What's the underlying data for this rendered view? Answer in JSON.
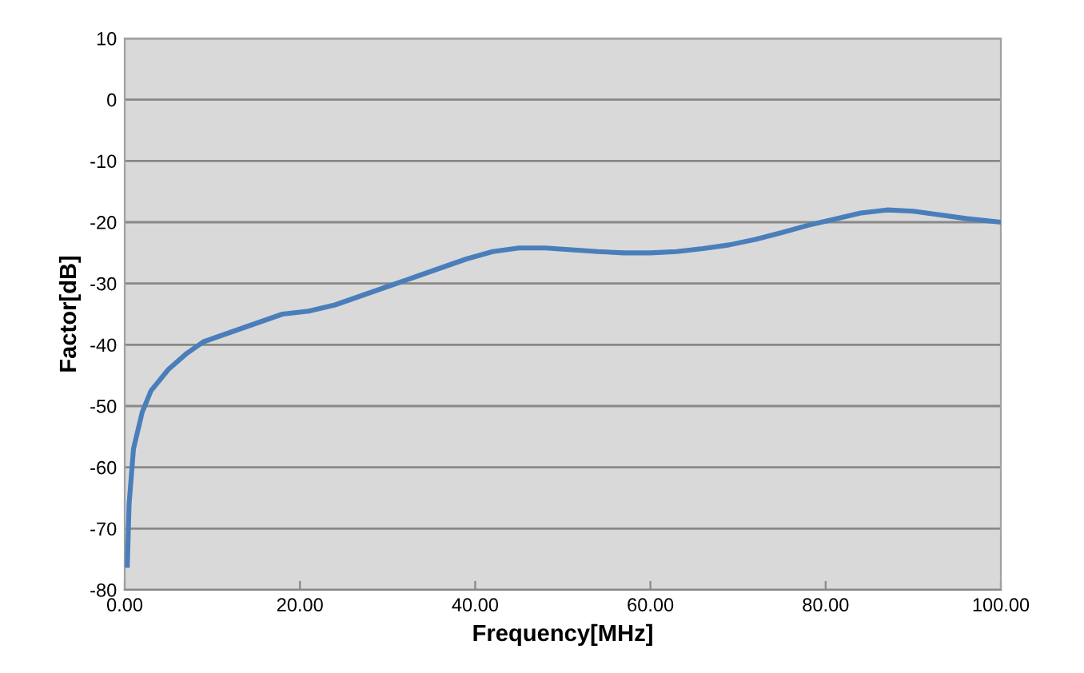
{
  "chart_data": {
    "type": "line",
    "xlabel": "Frequency[MHz]",
    "ylabel": "Factor[dB]",
    "xlim": [
      0,
      100
    ],
    "ylim": [
      -80,
      10
    ],
    "xticks": [
      {
        "value": 0,
        "label": "0.00"
      },
      {
        "value": 20,
        "label": "20.00"
      },
      {
        "value": 40,
        "label": "40.00"
      },
      {
        "value": 60,
        "label": "60.00"
      },
      {
        "value": 80,
        "label": "80.00"
      },
      {
        "value": 100,
        "label": "100.00"
      }
    ],
    "yticks": [
      -80,
      -70,
      -60,
      -50,
      -40,
      -30,
      -20,
      -10,
      0,
      10
    ],
    "grid": "y",
    "legend": false,
    "marker": "none",
    "line_style": "solid",
    "series": [
      {
        "color": "#4a7ebb",
        "x": [
          0.3,
          0.5,
          1,
          2,
          3,
          5,
          7,
          9,
          12,
          15,
          18,
          21,
          24,
          27,
          30,
          33,
          36,
          39,
          42,
          45,
          48,
          51,
          54,
          57,
          60,
          63,
          66,
          69,
          72,
          75,
          78,
          81,
          84,
          87,
          90,
          93,
          96,
          100
        ],
        "values": [
          -76,
          -66,
          -57,
          -51,
          -47.5,
          -44,
          -41.5,
          -39.5,
          -38,
          -36.5,
          -35,
          -34.5,
          -33.5,
          -32,
          -30.5,
          -29,
          -27.5,
          -26,
          -24.8,
          -24.2,
          -24.2,
          -24.5,
          -24.8,
          -25,
          -25,
          -24.8,
          -24.3,
          -23.7,
          -22.8,
          -21.7,
          -20.5,
          -19.5,
          -18.5,
          -18,
          -18.2,
          -18.8,
          -19.4,
          -20
        ]
      }
    ]
  }
}
